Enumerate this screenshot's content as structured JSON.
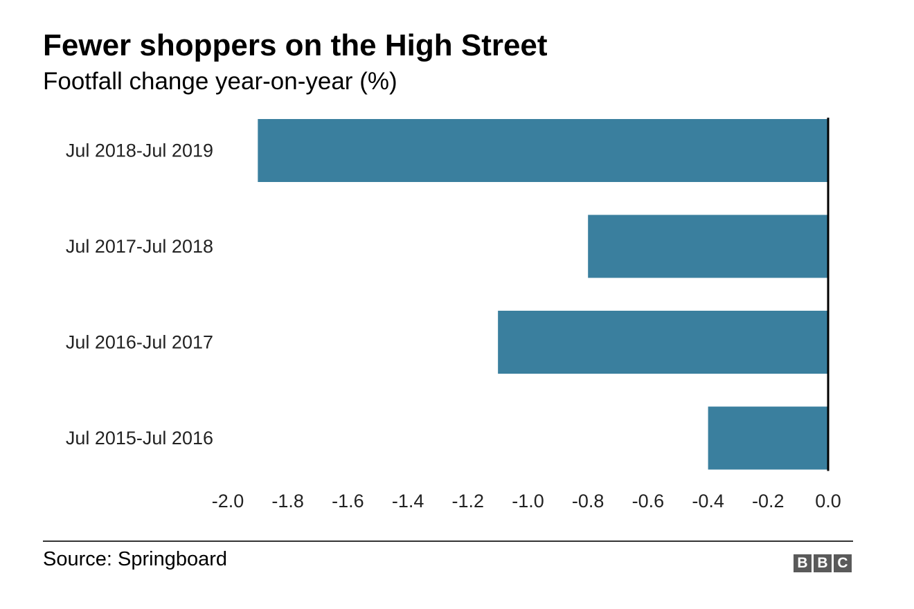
{
  "header": {
    "title": "Fewer shoppers on the High Street",
    "subtitle": "Footfall change year-on-year (%)"
  },
  "chart_data": {
    "type": "bar",
    "orientation": "horizontal",
    "title": "Fewer shoppers on the High Street",
    "subtitle": "Footfall change year-on-year (%)",
    "categories": [
      "Jul 2018-Jul 2019",
      "Jul 2017-Jul 2018",
      "Jul 2016-Jul 2017",
      "Jul 2015-Jul 2016"
    ],
    "values": [
      -1.9,
      -0.8,
      -1.1,
      -0.4
    ],
    "xlabel": "",
    "ylabel": "",
    "xlim": [
      -2.0,
      0.0
    ],
    "xticks": [
      -2.0,
      -1.8,
      -1.6,
      -1.4,
      -1.2,
      -1.0,
      -0.8,
      -0.6,
      -0.4,
      -0.2,
      0.0
    ],
    "xtick_labels": [
      "-2.0",
      "-1.8",
      "-1.6",
      "-1.4",
      "-1.2",
      "-1.0",
      "-0.8",
      "-0.6",
      "-0.4",
      "-0.2",
      "0.0"
    ],
    "grid": false,
    "bar_color": "#3a7f9e",
    "zero_line_color": "#000000"
  },
  "footer": {
    "source": "Source: Springboard",
    "logo_letters": [
      "B",
      "B",
      "C"
    ]
  }
}
